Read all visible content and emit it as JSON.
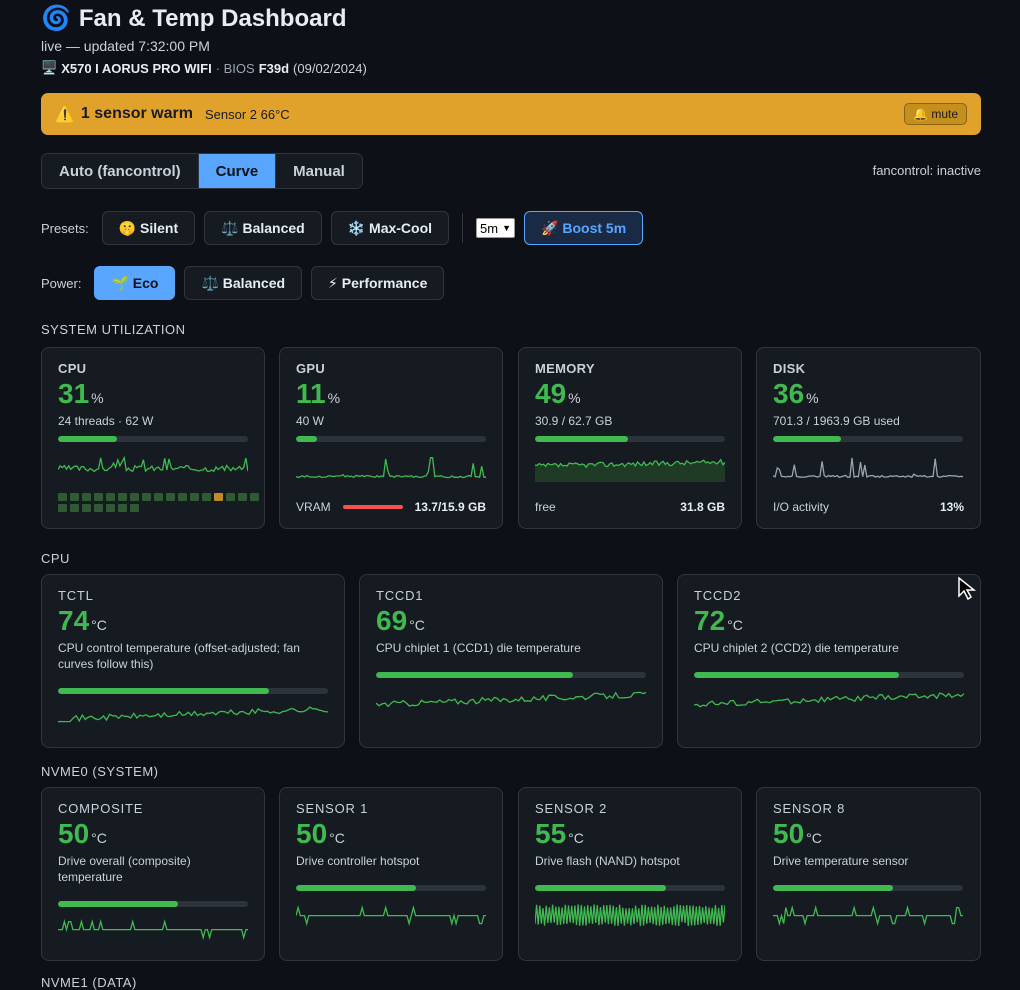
{
  "header": {
    "icon": "cyclone-icon",
    "title": "Fan & Temp Dashboard",
    "status": "live — updated 7:32:00 PM",
    "board": "X570 I AORUS PRO WIFI",
    "bios_label": "· BIOS",
    "bios_version": "F39d",
    "bios_date": "(09/02/2024)"
  },
  "alert": {
    "icon": "warning-icon",
    "title": "1 sensor warm",
    "detail": "Sensor 2 66°C",
    "mute_label": "🔔 mute",
    "color": "#e0a22b"
  },
  "mode": {
    "tabs": [
      "Auto (fancontrol)",
      "Curve",
      "Manual"
    ],
    "active": "Curve",
    "fancontrol_status": "fancontrol: inactive"
  },
  "presets": {
    "label": "Presets:",
    "buttons": [
      "🤫 Silent",
      "⚖️ Balanced",
      "❄️ Max-Cool"
    ],
    "duration": "5m",
    "boost_label": "🚀 Boost 5m"
  },
  "power": {
    "label": "Power:",
    "buttons": [
      "🌱 Eco",
      "⚖️ Balanced",
      "⚡ Performance"
    ],
    "active": "🌱 Eco"
  },
  "sections": {
    "utilization": "SYSTEM UTILIZATION",
    "cpu": "CPU",
    "nvme0": "NVME0 (SYSTEM)",
    "nvme1": "NVME1 (DATA)"
  },
  "utilization": [
    {
      "name": "CPU",
      "value": "31",
      "unit": "%",
      "sub": "24 threads · 62 W",
      "fill": 0.31
    },
    {
      "name": "GPU",
      "value": "11",
      "unit": "%",
      "sub": "40 W",
      "fill": 0.11,
      "foot_label": "VRAM",
      "foot_value": "13.7/15.9 GB"
    },
    {
      "name": "MEMORY",
      "value": "49",
      "unit": "%",
      "sub": "30.9 / 62.7 GB",
      "fill": 0.49,
      "foot_label": "free",
      "foot_value": "31.8 GB"
    },
    {
      "name": "DISK",
      "value": "36",
      "unit": "%",
      "sub": "701.3 / 1963.9 GB used",
      "fill": 0.36,
      "foot_label": "I/O activity",
      "foot_value": "13%"
    }
  ],
  "cpu_temps": [
    {
      "name": "TCTL",
      "value": "74",
      "unit": "°C",
      "sub": "CPU control temperature (offset-adjusted; fan curves follow this)",
      "fill": 0.78
    },
    {
      "name": "TCCD1",
      "value": "69",
      "unit": "°C",
      "sub": "CPU chiplet 1 (CCD1) die temperature",
      "fill": 0.73
    },
    {
      "name": "TCCD2",
      "value": "72",
      "unit": "°C",
      "sub": "CPU chiplet 2 (CCD2) die temperature",
      "fill": 0.76
    }
  ],
  "nvme0": [
    {
      "name": "COMPOSITE",
      "value": "50",
      "unit": "°C",
      "sub": "Drive overall (composite) temperature",
      "fill": 0.63
    },
    {
      "name": "SENSOR 1",
      "value": "50",
      "unit": "°C",
      "sub": "Drive controller hotspot",
      "fill": 0.63
    },
    {
      "name": "SENSOR 2",
      "value": "55",
      "unit": "°C",
      "sub": "Drive flash (NAND) hotspot",
      "fill": 0.69
    },
    {
      "name": "SENSOR 8",
      "value": "50",
      "unit": "°C",
      "sub": "Drive temperature sensor",
      "fill": 0.63
    }
  ],
  "colors": {
    "accent": "#58a6ff",
    "good": "#3fb950",
    "warn": "#e0a22b",
    "bad": "#f85149"
  }
}
